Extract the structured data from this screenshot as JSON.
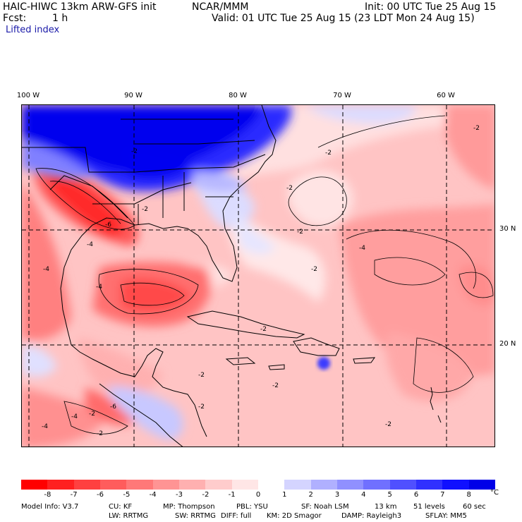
{
  "header": {
    "model_title": "HAIC-HIWC 13km ARW-GFS init",
    "org": "NCAR/MMM",
    "init": "Init: 00 UTC Tue 25 Aug 15",
    "fcst_label": "Fcst:",
    "fcst_value": "1 h",
    "valid": "Valid: 01 UTC Tue 25 Aug 15 (23 LDT Mon 24 Aug 15)",
    "field": "Lifted index"
  },
  "map": {
    "longitude_labels": [
      "100 W",
      "90 W",
      "80 W",
      "70 W",
      "60 W"
    ],
    "latitude_labels": [
      "30 N",
      "20 N"
    ],
    "contour_labels": [
      "-2",
      "-2",
      "-2",
      "-2",
      "-2",
      "-2",
      "-2",
      "-2",
      "-2",
      "-2",
      "-2",
      "-2",
      "-4",
      "-4",
      "-4",
      "-4",
      "-4",
      "-6",
      "-6",
      "-2",
      "-2",
      "-4"
    ]
  },
  "colorbar": {
    "unit": "°C",
    "labels": [
      "-8",
      "-7",
      "-6",
      "-5",
      "-4",
      "-3",
      "-2",
      "-1",
      "0",
      "1",
      "2",
      "3",
      "4",
      "5",
      "6",
      "7",
      "8"
    ],
    "colors": [
      "#ff0000",
      "#ff2020",
      "#ff4040",
      "#ff5c5c",
      "#ff7878",
      "#ff9494",
      "#ffb0b0",
      "#ffcccc",
      "#ffe6e6",
      "#ffffff",
      "#d4d4ff",
      "#b0b0ff",
      "#9090ff",
      "#7070ff",
      "#5050ff",
      "#3030ff",
      "#1010ff",
      "#0000e8"
    ]
  },
  "footer": {
    "line1": [
      "Model Info: V3.7",
      "CU: KF",
      "MP: Thompson",
      "PBL: YSU",
      "SF: Noah LSM",
      "13 km",
      "51 levels",
      "60 sec"
    ],
    "line2": [
      "LW: RRTMG",
      "SW: RRTMG",
      "DIFF: full",
      "KM: 2D Smagor",
      "DAMP: Rayleigh3",
      "SFLAY: MM5"
    ]
  }
}
